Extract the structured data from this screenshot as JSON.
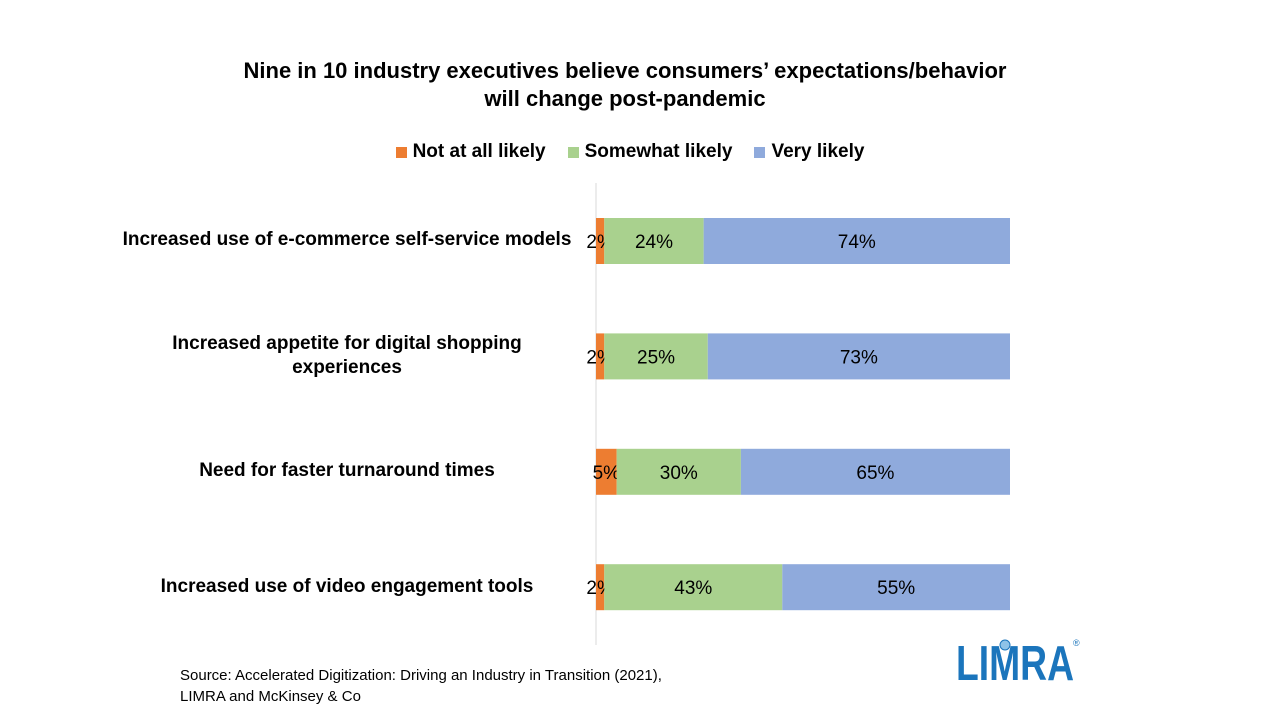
{
  "title_line1": "Nine in 10 industry executives believe consumers’ expectations/behavior",
  "title_line2": "will change post-pandemic",
  "source_line1": "Source: Accelerated Digitization: Driving an Industry  in Transition (2021),",
  "source_line2": "LIMRA and McKinsey & Co",
  "logo_text": "LIMRA",
  "colors": {
    "not_at_all": "#ED7D31",
    "somewhat": "#A9D18E",
    "very": "#8FAADC",
    "logo": "#1B75BC",
    "axis": "#D9D9D9"
  },
  "chart_data": {
    "type": "bar",
    "orientation": "horizontal",
    "stacked": true,
    "title": "Nine in 10 industry executives believe consumers’ expectations/behavior will change post-pandemic",
    "legend_position": "top",
    "grid": false,
    "xlim": [
      0,
      100
    ],
    "categories": [
      "Increased use of e-commerce self-service models",
      "Increased appetite for digital shopping experiences",
      "Need for faster turnaround times",
      "Increased use of video engagement tools"
    ],
    "series": [
      {
        "name": "Not at all likely",
        "values": [
          2,
          2,
          5,
          2
        ],
        "labels": [
          "2%",
          "2%",
          "5%",
          "2%"
        ]
      },
      {
        "name": "Somewhat likely",
        "values": [
          24,
          25,
          30,
          43
        ],
        "labels": [
          "24%",
          "25%",
          "30%",
          "43%"
        ]
      },
      {
        "name": "Very likely",
        "values": [
          74,
          73,
          65,
          55
        ],
        "labels": [
          "74%",
          "73%",
          "65%",
          "55%"
        ]
      }
    ]
  }
}
